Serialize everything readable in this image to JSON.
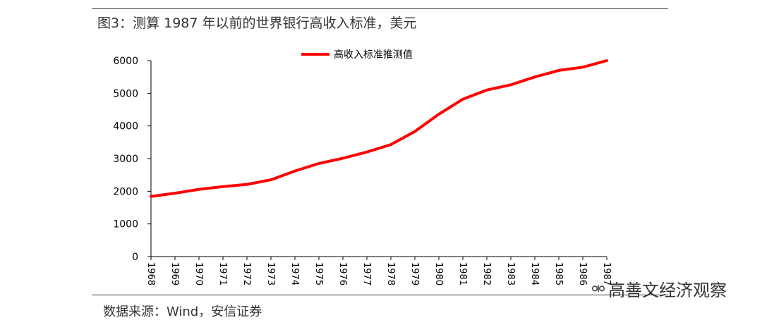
{
  "header": {
    "title": "图3：测算 1987 年以前的世界银行高收入标准，美元"
  },
  "footer": {
    "source": "数据来源：Wind，安信证券"
  },
  "watermark": {
    "text": "高善文经济观察",
    "icon": "wechat-icon"
  },
  "colors": {
    "series": "#ff0000",
    "axis": "#000000"
  },
  "chart_data": {
    "type": "line",
    "title": "",
    "xlabel": "",
    "ylabel": "",
    "ylim": [
      0,
      6000
    ],
    "yticks": [
      "0",
      "1000",
      "2000",
      "3000",
      "4000",
      "5000",
      "6000"
    ],
    "categories": [
      "1968",
      "1969",
      "1970",
      "1971",
      "1972",
      "1973",
      "1974",
      "1975",
      "1976",
      "1977",
      "1978",
      "1979",
      "1980",
      "1981",
      "1982",
      "1983",
      "1984",
      "1985",
      "1986",
      "1987"
    ],
    "series": [
      {
        "name": "高收入标准推测值",
        "values": [
          1840,
          1940,
          2060,
          2140,
          2210,
          2350,
          2620,
          2850,
          3010,
          3200,
          3430,
          3830,
          4360,
          4820,
          5100,
          5260,
          5500,
          5700,
          5800,
          6000
        ]
      }
    ],
    "legend": "top-center",
    "grid": false
  }
}
